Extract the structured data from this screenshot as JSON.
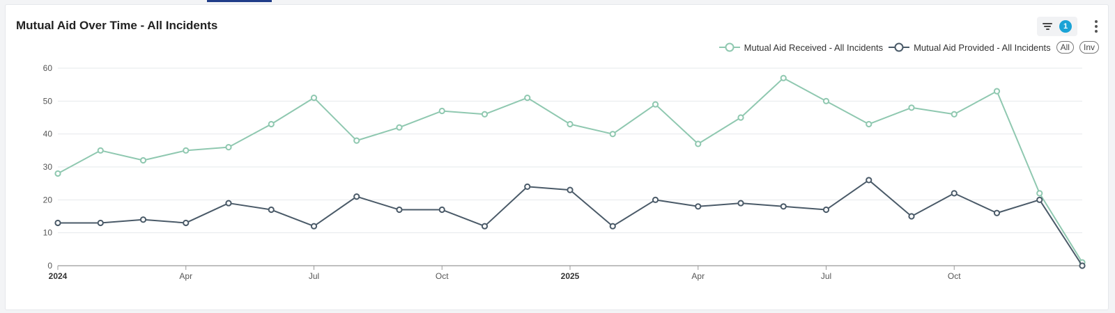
{
  "card": {
    "title": "Mutual Aid Over Time - All Incidents",
    "filter_count": "1",
    "legend_all": "All",
    "legend_inv": "Inv"
  },
  "chart_data": {
    "type": "line",
    "title": "Mutual Aid Over Time - All Incidents",
    "xlabel": "",
    "ylabel": "",
    "ylim": [
      0,
      60
    ],
    "y_ticks": [
      0,
      10,
      20,
      30,
      40,
      50,
      60
    ],
    "grid": true,
    "legend_position": "top-right",
    "x": [
      "2024-01",
      "2024-02",
      "2024-03",
      "2024-04",
      "2024-05",
      "2024-06",
      "2024-07",
      "2024-08",
      "2024-09",
      "2024-10",
      "2024-11",
      "2024-12",
      "2025-01",
      "2025-02",
      "2025-03",
      "2025-04",
      "2025-05",
      "2025-06",
      "2025-07",
      "2025-08",
      "2025-09",
      "2025-10",
      "2025-11",
      "2025-12",
      "2026-01"
    ],
    "x_tick_labels": [
      {
        "index": 0,
        "label": "2024",
        "bold": true
      },
      {
        "index": 3,
        "label": "Apr",
        "bold": false
      },
      {
        "index": 6,
        "label": "Jul",
        "bold": false
      },
      {
        "index": 9,
        "label": "Oct",
        "bold": false
      },
      {
        "index": 12,
        "label": "2025",
        "bold": true
      },
      {
        "index": 15,
        "label": "Apr",
        "bold": false
      },
      {
        "index": 18,
        "label": "Jul",
        "bold": false
      },
      {
        "index": 21,
        "label": "Oct",
        "bold": false
      }
    ],
    "series": [
      {
        "name": "Mutual Aid Received - All Incidents",
        "color": "#8fc8b0",
        "values": [
          28,
          35,
          32,
          35,
          36,
          43,
          51,
          38,
          42,
          47,
          46,
          51,
          43,
          40,
          49,
          37,
          45,
          57,
          50,
          43,
          48,
          46,
          53,
          22,
          1
        ]
      },
      {
        "name": "Mutual Aid Provided - All Incidents",
        "color": "#4a5a68",
        "values": [
          13,
          13,
          14,
          13,
          19,
          17,
          12,
          21,
          17,
          17,
          12,
          24,
          23,
          12,
          20,
          18,
          19,
          18,
          17,
          26,
          15,
          22,
          16,
          20,
          0
        ]
      }
    ]
  }
}
